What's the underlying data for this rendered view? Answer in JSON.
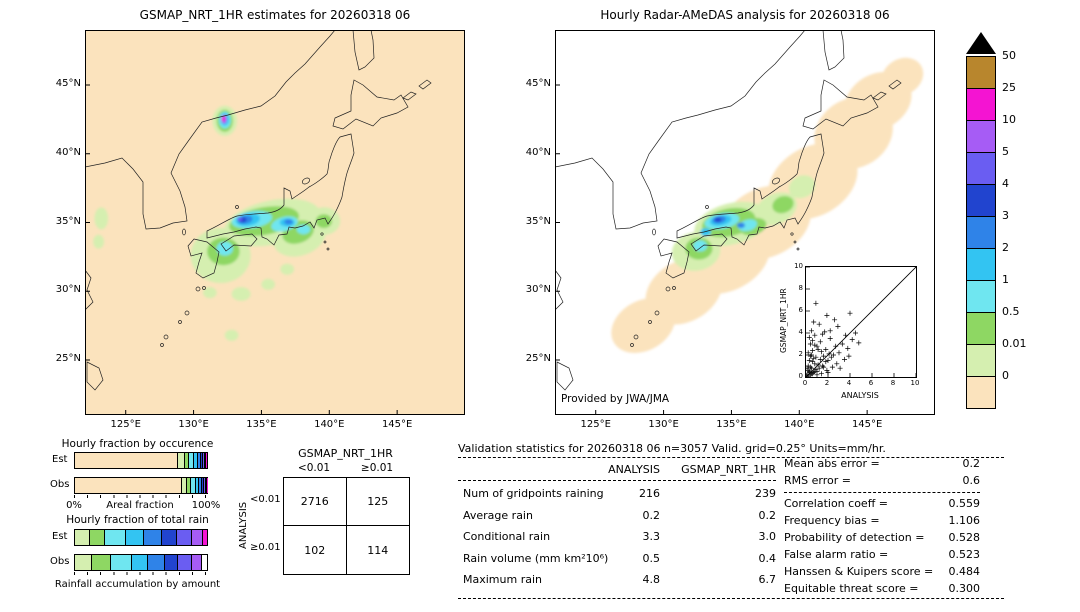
{
  "palette": {
    "peach": "#fbe3bd",
    "palegreen": "#d5efb0",
    "green": "#8ed763",
    "lightcyan": "#6fe6f0",
    "cyan": "#33c4f2",
    "blue3": "#2f83e8",
    "blue4": "#2144cf",
    "violet": "#6a5df2",
    "purple": "#a65cf5",
    "magenta": "#f414d2",
    "gold": "#b8862d",
    "white": "#ffffff",
    "overflow": "#000000"
  },
  "chart_data": [
    {
      "type": "heatmap",
      "title": "GSMAP_NRT_1HR estimates for 20260318 06",
      "units": "mm/hr",
      "background": "peach",
      "extent": [
        122,
        150,
        21,
        49
      ],
      "lat_ticks": [
        {
          "v": 45,
          "label": "45°N"
        },
        {
          "v": 40,
          "label": "40°N"
        },
        {
          "v": 35,
          "label": "35°N"
        },
        {
          "v": 30,
          "label": "30°N"
        },
        {
          "v": 25,
          "label": "25°N"
        }
      ],
      "lon_ticks": [
        {
          "v": 125,
          "label": "125°E"
        },
        {
          "v": 130,
          "label": "130°E"
        },
        {
          "v": 135,
          "label": "135°E"
        },
        {
          "v": 140,
          "label": "140°E"
        },
        {
          "v": 145,
          "label": "145°E"
        }
      ],
      "blobs": [
        [
          "palegreen",
          135.8,
          35.0,
          3.6,
          1.6,
          -12
        ],
        [
          "palegreen",
          132.0,
          32.6,
          2.2,
          2.0,
          0
        ],
        [
          "palegreen",
          137.8,
          34.0,
          2.0,
          1.4,
          -20
        ],
        [
          "palegreen",
          139.6,
          35.1,
          1.2,
          1.0,
          0
        ],
        [
          "palegreen",
          132.3,
          42.4,
          0.9,
          1.1,
          0
        ],
        [
          "palegreen",
          133.5,
          29.8,
          0.7,
          0.5,
          0
        ],
        [
          "palegreen",
          135.5,
          30.5,
          0.5,
          0.4,
          0
        ],
        [
          "palegreen",
          123.2,
          35.3,
          0.5,
          0.8,
          0
        ],
        [
          "palegreen",
          123.0,
          33.6,
          0.4,
          0.5,
          0
        ],
        [
          "palegreen",
          131.2,
          29.9,
          0.5,
          0.4,
          0
        ],
        [
          "palegreen",
          136.9,
          31.6,
          0.5,
          0.4,
          0
        ],
        [
          "palegreen",
          132.8,
          26.8,
          0.5,
          0.4,
          0
        ],
        [
          "green",
          135.2,
          35.1,
          2.6,
          1.0,
          -10
        ],
        [
          "green",
          132.2,
          32.9,
          1.2,
          1.0,
          0
        ],
        [
          "green",
          137.7,
          34.3,
          1.2,
          0.8,
          -20
        ],
        [
          "green",
          132.3,
          42.4,
          0.6,
          0.8,
          0
        ],
        [
          "green",
          139.6,
          35.1,
          0.6,
          0.5,
          0
        ],
        [
          "lightcyan",
          134.3,
          35.2,
          1.5,
          0.6,
          -8
        ],
        [
          "lightcyan",
          136.7,
          34.9,
          1.0,
          0.5,
          -15
        ],
        [
          "lightcyan",
          132.3,
          33.1,
          0.6,
          0.5,
          0
        ],
        [
          "lightcyan",
          132.3,
          42.45,
          0.45,
          0.6,
          0
        ],
        [
          "lightcyan",
          138.1,
          34.5,
          0.5,
          0.35,
          0
        ],
        [
          "cyan",
          134.0,
          35.2,
          0.9,
          0.45,
          -8
        ],
        [
          "cyan",
          136.9,
          35.0,
          0.55,
          0.3,
          0
        ],
        [
          "cyan",
          132.3,
          42.5,
          0.32,
          0.45,
          0
        ],
        [
          "blue3",
          133.8,
          35.2,
          0.55,
          0.3,
          -8
        ],
        [
          "blue3",
          137.0,
          35.05,
          0.32,
          0.2,
          0
        ],
        [
          "blue4",
          133.6,
          35.2,
          0.3,
          0.2,
          0
        ],
        [
          "violet",
          133.4,
          35.25,
          0.2,
          0.14,
          0
        ],
        [
          "purple",
          132.25,
          42.5,
          0.2,
          0.32,
          0
        ],
        [
          "magenta",
          132.2,
          42.55,
          0.13,
          0.2,
          0
        ]
      ]
    },
    {
      "type": "heatmap",
      "title": "Hourly Radar-AMeDAS analysis for 20260318 06",
      "units": "mm/hr",
      "background": "white",
      "credit": "Provided by JWA/JMA",
      "extent": [
        122,
        150,
        21,
        49
      ],
      "lat_ticks": [
        {
          "v": 45,
          "label": "45°N"
        },
        {
          "v": 40,
          "label": "40°N"
        },
        {
          "v": 35,
          "label": "35°N"
        },
        {
          "v": 30,
          "label": "30°N"
        },
        {
          "v": 25,
          "label": "25°N"
        }
      ],
      "lon_ticks": [
        {
          "v": 125,
          "label": "125°E"
        },
        {
          "v": 130,
          "label": "130°E"
        },
        {
          "v": 135,
          "label": "135°E"
        },
        {
          "v": 140,
          "label": "140°E"
        },
        {
          "v": 145,
          "label": "145°E"
        }
      ],
      "blobs": [
        [
          "peach",
          128.5,
          27.5,
          2.5,
          1.8,
          -30
        ],
        [
          "peach",
          131.5,
          30.0,
          3.0,
          2.2,
          -30
        ],
        [
          "peach",
          134.5,
          32.5,
          3.5,
          2.5,
          -25
        ],
        [
          "peach",
          137.5,
          35.0,
          3.5,
          2.5,
          -25
        ],
        [
          "peach",
          141.0,
          38.0,
          3.5,
          2.5,
          -30
        ],
        [
          "peach",
          144.0,
          41.5,
          3.0,
          2.5,
          -30
        ],
        [
          "peach",
          145.8,
          43.8,
          2.6,
          2.0,
          -30
        ],
        [
          "peach",
          147.6,
          45.6,
          1.6,
          1.3,
          -30
        ],
        [
          "palegreen",
          135.0,
          34.9,
          2.8,
          1.5,
          -15
        ],
        [
          "palegreen",
          132.4,
          32.9,
          1.8,
          1.4,
          -10
        ],
        [
          "palegreen",
          138.3,
          36.0,
          1.6,
          1.1,
          -25
        ],
        [
          "palegreen",
          140.2,
          37.6,
          1.0,
          0.8,
          -25
        ],
        [
          "green",
          134.8,
          35.0,
          2.0,
          1.0,
          -12
        ],
        [
          "green",
          132.6,
          33.1,
          1.0,
          0.8,
          0
        ],
        [
          "green",
          136.6,
          34.7,
          1.0,
          0.6,
          -15
        ],
        [
          "green",
          138.8,
          36.3,
          0.8,
          0.6,
          -20
        ],
        [
          "lightcyan",
          134.3,
          35.1,
          1.3,
          0.55,
          -10
        ],
        [
          "lightcyan",
          136.2,
          34.8,
          0.7,
          0.4,
          -15
        ],
        [
          "lightcyan",
          132.7,
          33.3,
          0.5,
          0.4,
          0
        ],
        [
          "cyan",
          134.2,
          35.15,
          0.8,
          0.38,
          -10
        ],
        [
          "cyan",
          133.1,
          34.3,
          0.4,
          0.3,
          0
        ],
        [
          "blue3",
          134.1,
          35.2,
          0.5,
          0.26,
          -10
        ],
        [
          "blue3",
          135.7,
          34.8,
          0.3,
          0.2,
          0
        ],
        [
          "blue4",
          134.0,
          35.2,
          0.26,
          0.17,
          0
        ]
      ]
    },
    {
      "type": "scatter",
      "xlabel": "ANALYSIS",
      "ylabel": "GSMAP_NRT_1HR",
      "xlim": [
        0,
        10
      ],
      "ylim": [
        0,
        10
      ],
      "xticks": [
        0,
        2,
        4,
        6,
        8,
        10
      ],
      "yticks": [
        0,
        2,
        4,
        6,
        8,
        10
      ],
      "marker": "+",
      "diagonal": true,
      "points": [
        [
          0.1,
          0.2
        ],
        [
          0.2,
          0.1
        ],
        [
          0.3,
          0.5
        ],
        [
          0.4,
          0.2
        ],
        [
          0.5,
          0.8
        ],
        [
          0.2,
          0.6
        ],
        [
          0.6,
          0.3
        ],
        [
          0.8,
          1.2
        ],
        [
          1.0,
          0.5
        ],
        [
          0.3,
          1.5
        ],
        [
          1.2,
          0.8
        ],
        [
          0.5,
          2.0
        ],
        [
          1.5,
          1.0
        ],
        [
          0.7,
          0.4
        ],
        [
          2.0,
          1.5
        ],
        [
          1.8,
          2.5
        ],
        [
          0.4,
          3.0
        ],
        [
          2.5,
          2.0
        ],
        [
          1.0,
          2.8
        ],
        [
          3.0,
          2.2
        ],
        [
          0.9,
          1.8
        ],
        [
          1.4,
          0.3
        ],
        [
          2.2,
          3.5
        ],
        [
          0.6,
          2.4
        ],
        [
          3.3,
          3.0
        ],
        [
          1.6,
          1.9
        ],
        [
          2.8,
          1.2
        ],
        [
          0.8,
          3.8
        ],
        [
          1.1,
          1.1
        ],
        [
          3.8,
          2.6
        ],
        [
          0.2,
          2.2
        ],
        [
          4.2,
          3.4
        ],
        [
          1.9,
          0.6
        ],
        [
          2.4,
          0.9
        ],
        [
          4.8,
          3.1
        ],
        [
          0.5,
          4.2
        ],
        [
          1.3,
          3.2
        ],
        [
          3.5,
          1.6
        ],
        [
          0.7,
          5.0
        ],
        [
          2.1,
          2.1
        ],
        [
          1.7,
          4.1
        ],
        [
          2.9,
          4.6
        ],
        [
          0.9,
          6.7
        ],
        [
          3.1,
          0.8
        ],
        [
          0.3,
          3.6
        ],
        [
          2.6,
          5.2
        ],
        [
          1.2,
          4.8
        ],
        [
          4.5,
          4.0
        ],
        [
          0.6,
          1.4
        ],
        [
          1.8,
          1.4
        ],
        [
          0.4,
          0.9
        ],
        [
          2.3,
          1.8
        ],
        [
          0.8,
          2.9
        ],
        [
          1.5,
          3.9
        ],
        [
          3.6,
          3.8
        ],
        [
          0.2,
          1.0
        ],
        [
          1.0,
          0.2
        ],
        [
          2.0,
          0.4
        ],
        [
          0.5,
          0.3
        ],
        [
          1.4,
          2.3
        ],
        [
          0.9,
          0.7
        ],
        [
          2.7,
          2.8
        ],
        [
          0.3,
          0.4
        ],
        [
          1.6,
          0.9
        ],
        [
          0.7,
          1.7
        ],
        [
          1.1,
          2.5
        ],
        [
          0.4,
          1.9
        ],
        [
          2.2,
          4.2
        ],
        [
          0.6,
          3.3
        ],
        [
          1.9,
          5.6
        ],
        [
          0.1,
          0.8
        ],
        [
          3.9,
          1.9
        ],
        [
          0.8,
          0.5
        ],
        [
          1.3,
          1.6
        ],
        [
          4.0,
          5.8
        ]
      ]
    },
    {
      "type": "bar",
      "title": "Hourly fraction by occurence",
      "orientation": "horizontal-stacked",
      "unit": "percent",
      "axis": {
        "min_label": "0%",
        "title": "Areal fraction",
        "max_label": "100%"
      },
      "rows": [
        {
          "label": "Est",
          "segments": [
            [
              "peach",
              78
            ],
            [
              "palegreen",
              5
            ],
            [
              "green",
              3
            ],
            [
              "lightcyan",
              4
            ],
            [
              "cyan",
              3
            ],
            [
              "blue3",
              2.5
            ],
            [
              "blue4",
              1.5
            ],
            [
              "violet",
              1.5
            ],
            [
              "purple",
              1
            ],
            [
              "magenta",
              0.5
            ]
          ]
        },
        {
          "label": "Obs",
          "segments": [
            [
              "peach",
              81
            ],
            [
              "palegreen",
              4
            ],
            [
              "green",
              3
            ],
            [
              "lightcyan",
              3.5
            ],
            [
              "cyan",
              2.5
            ],
            [
              "blue3",
              2
            ],
            [
              "blue4",
              1.5
            ],
            [
              "violet",
              1.5
            ],
            [
              "purple",
              0.7
            ],
            [
              "magenta",
              0.3
            ]
          ]
        }
      ]
    },
    {
      "type": "bar",
      "title": "Hourly fraction of total rain",
      "orientation": "horizontal-stacked",
      "unit": "percent",
      "caption": "Rainfall accumulation by amount",
      "rows": [
        {
          "label": "Est",
          "segments": [
            [
              "palegreen",
              11
            ],
            [
              "green",
              12
            ],
            [
              "lightcyan",
              16
            ],
            [
              "cyan",
              13
            ],
            [
              "blue3",
              14
            ],
            [
              "blue4",
              11
            ],
            [
              "violet",
              12
            ],
            [
              "purple",
              8
            ],
            [
              "magenta",
              3
            ]
          ]
        },
        {
          "label": "Obs",
          "segments": [
            [
              "palegreen",
              13
            ],
            [
              "green",
              14
            ],
            [
              "lightcyan",
              16
            ],
            [
              "cyan",
              12
            ],
            [
              "blue3",
              13
            ],
            [
              "blue4",
              10
            ],
            [
              "violet",
              11
            ],
            [
              "purple",
              7
            ],
            [
              "white",
              4
            ]
          ]
        }
      ]
    },
    {
      "type": "table",
      "title": "GSMAP_NRT_1HR",
      "row_axis": "ANALYSIS",
      "col_headers": [
        "<0.01",
        "≥0.01"
      ],
      "row_headers": [
        "<0.01",
        "≥0.01"
      ],
      "values": [
        [
          2716,
          125
        ],
        [
          102,
          114
        ]
      ]
    },
    {
      "type": "table",
      "title": "Validation statistics for 20260318 06  n=3057 Valid. grid=0.25° Units=mm/hr.",
      "columns": [
        "ANALYSIS",
        "GSMAP_NRT_1HR"
      ],
      "rows": [
        {
          "label": "Num of gridpoints raining",
          "values": [
            "216",
            "239"
          ]
        },
        {
          "label": "Average rain",
          "values": [
            "0.2",
            "0.2"
          ]
        },
        {
          "label": "Conditional rain",
          "values": [
            "3.3",
            "3.0"
          ]
        },
        {
          "label": "Rain volume (mm km²10⁶)",
          "values": [
            "0.5",
            "0.4"
          ]
        },
        {
          "label": "Maximum rain",
          "values": [
            "4.8",
            "6.7"
          ]
        }
      ],
      "side_stats": [
        {
          "label": "Mean abs error",
          "value": "0.2"
        },
        {
          "label": "RMS error",
          "value": "0.6"
        },
        {
          "label": "Correlation coeff",
          "value": "0.559"
        },
        {
          "label": "Frequency bias",
          "value": "1.106"
        },
        {
          "label": "Probability of detection",
          "value": "0.528"
        },
        {
          "label": "False alarm ratio",
          "value": "0.523"
        },
        {
          "label": "Hanssen & Kuipers score",
          "value": "0.484"
        },
        {
          "label": "Equitable threat score",
          "value": "0.300"
        }
      ]
    },
    {
      "type": "legend",
      "labels": [
        "50",
        "25",
        "10",
        "5",
        "4",
        "3",
        "2",
        "1",
        "0.5",
        "0.01",
        "0"
      ],
      "cells": [
        "gold",
        "magenta",
        "purple",
        "violet",
        "blue4",
        "blue3",
        "cyan",
        "lightcyan",
        "green",
        "palegreen",
        "peach"
      ],
      "overflow_color": "#000000"
    }
  ]
}
